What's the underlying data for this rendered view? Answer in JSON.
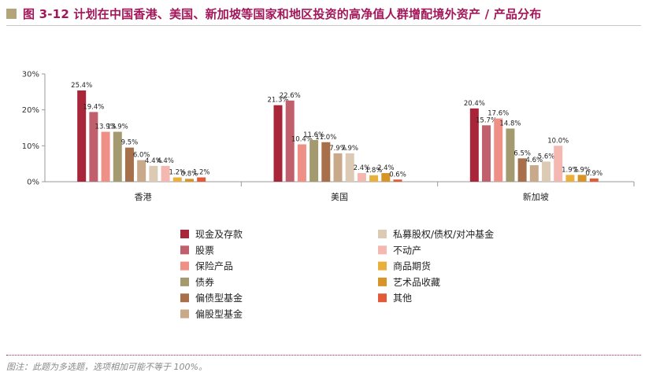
{
  "title_block": {
    "title": "图 3-12 计划在中国香港、美国、新加坡等国家和地区投资的高净值人群增配境外资产 / 产品分布",
    "footnote": "图注：此题为多选题，选项相加可能不等于 100%。"
  },
  "chart_data": {
    "type": "bar",
    "title": "计划在中国香港、美国、新加坡等国家和地区投资的高净值人群增配境外资产 / 产品分布",
    "xlabel": "",
    "ylabel": "",
    "ylim": [
      0,
      30
    ],
    "yticks": [
      "0%",
      "10%",
      "20%",
      "30%"
    ],
    "grid": false,
    "legend_position": "bottom",
    "categories": [
      "香港",
      "美国",
      "新加坡"
    ],
    "series": [
      {
        "name": "现金及存款",
        "color": "#a8253a",
        "values": [
          25.4,
          21.3,
          20.4
        ],
        "labels": [
          "25.4%",
          "21.3%",
          "20.4%"
        ]
      },
      {
        "name": "股票",
        "color": "#c0606d",
        "values": [
          19.4,
          22.6,
          15.7
        ],
        "labels": [
          "19.4%",
          "22.6%",
          "15.7%"
        ]
      },
      {
        "name": "保险产品",
        "color": "#ef9086",
        "values": [
          13.9,
          10.4,
          17.6
        ],
        "labels": [
          "13.9%",
          "10.4%",
          "17.6%"
        ]
      },
      {
        "name": "债券",
        "color": "#a39a6f",
        "values": [
          13.9,
          11.6,
          14.8
        ],
        "labels": [
          "13.9%",
          "11.6%",
          "14.8%"
        ]
      },
      {
        "name": "偏债型基金",
        "color": "#a8704a",
        "values": [
          9.5,
          11.0,
          6.5
        ],
        "labels": [
          "9.5%",
          "11.0%",
          "6.5%"
        ]
      },
      {
        "name": "偏股型基金",
        "color": "#c8a98a",
        "values": [
          6.0,
          7.9,
          4.6
        ],
        "labels": [
          "6.0%",
          "7.9%",
          "4.6%"
        ]
      },
      {
        "name": "私募股权/债权/对冲基金",
        "color": "#dccab4",
        "values": [
          4.4,
          7.9,
          5.6
        ],
        "labels": [
          "4.4%",
          "7.9%",
          "5.6%"
        ]
      },
      {
        "name": "不动产",
        "color": "#f4b8b0",
        "values": [
          4.4,
          2.4,
          10.0
        ],
        "labels": [
          "4.4%",
          "2.4%",
          "10.0%"
        ]
      },
      {
        "name": "商品期货",
        "color": "#e9b13c",
        "values": [
          1.2,
          1.8,
          1.9
        ],
        "labels": [
          "1.2%",
          "1.8%",
          "1.9%"
        ]
      },
      {
        "name": "艺术品收藏",
        "color": "#d69429",
        "values": [
          0.8,
          2.4,
          1.9
        ],
        "labels": [
          "0.8%",
          "2.4%",
          "1.9%"
        ]
      },
      {
        "name": "其他",
        "color": "#e35a38",
        "values": [
          1.2,
          0.6,
          0.9
        ],
        "labels": [
          "1.2%",
          "0.6%",
          "0.9%"
        ]
      }
    ]
  }
}
